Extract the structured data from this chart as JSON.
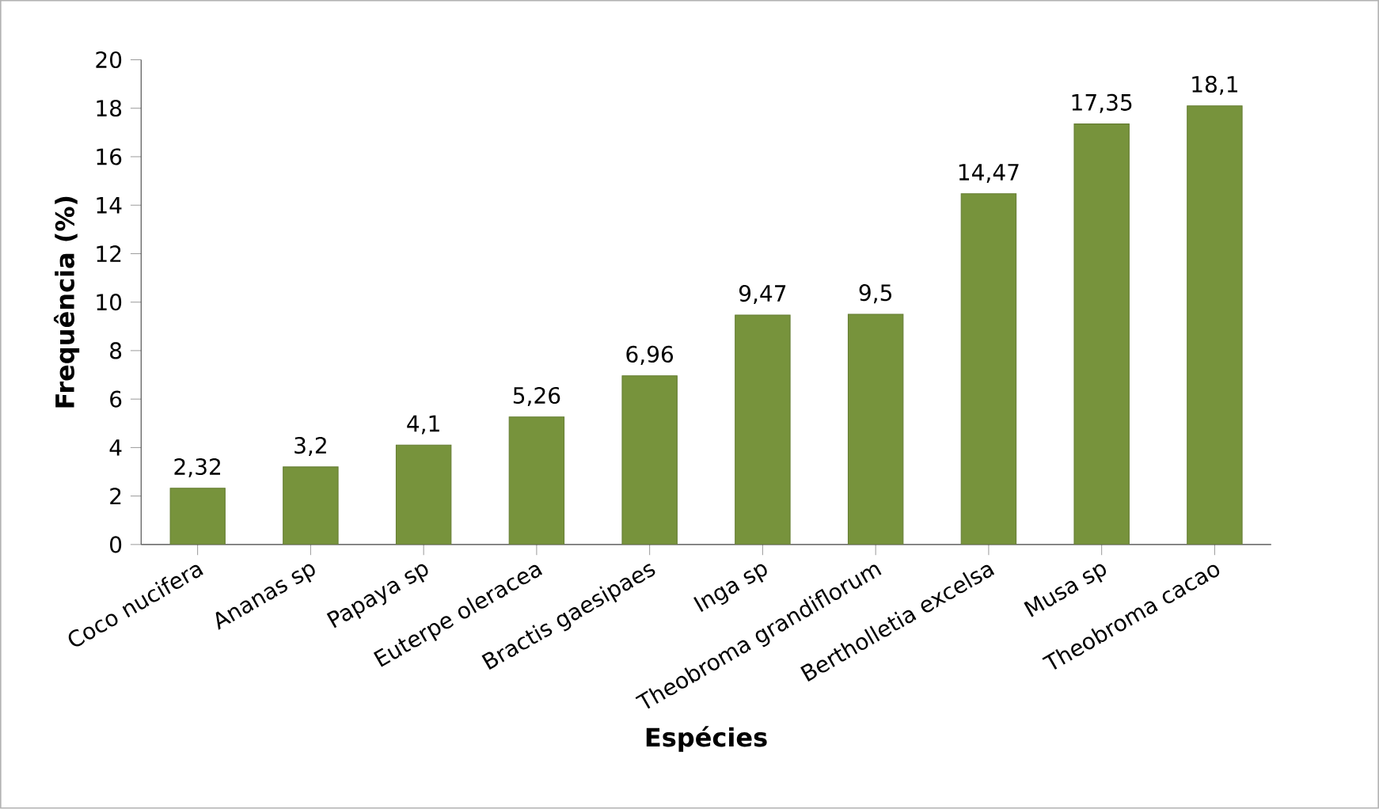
{
  "chart_data": {
    "type": "bar",
    "xlabel": "Espécies",
    "ylabel": "Frequência (%)",
    "categories": [
      "Coco nucifera",
      "Ananas sp",
      "Papaya sp",
      "Euterpe oleracea",
      "Bractis gaesipaes",
      "Inga sp",
      "Theobroma grandiflorum",
      "Bertholletia excelsa",
      "Musa sp",
      "Theobroma cacao"
    ],
    "values": [
      2.32,
      3.2,
      4.1,
      5.26,
      6.96,
      9.47,
      9.5,
      14.47,
      17.35,
      18.1
    ],
    "value_labels": [
      "2,32",
      "3,2",
      "4,1",
      "5,26",
      "6,96",
      "9,47",
      "9,5",
      "14,47",
      "17,35",
      "18,1"
    ],
    "color": "#77933c",
    "ylim": [
      0,
      20
    ],
    "yticks": [
      0,
      2,
      4,
      6,
      8,
      10,
      12,
      14,
      16,
      18,
      20
    ]
  }
}
